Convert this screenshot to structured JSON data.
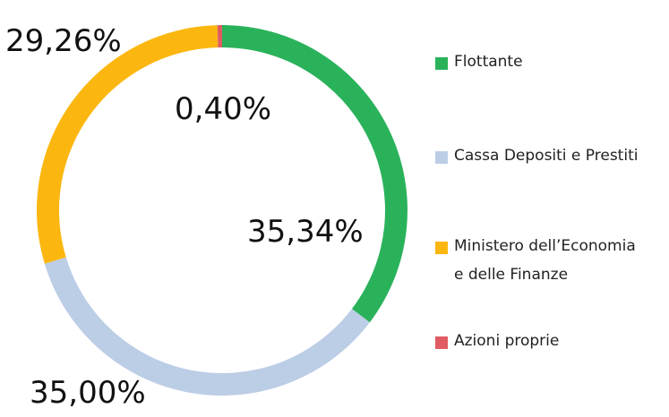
{
  "chart_data": {
    "type": "pie",
    "donut": true,
    "slices": [
      {
        "label": "Flottante",
        "value": 35.34,
        "value_label": "35,34%",
        "color": "#2ab25b"
      },
      {
        "label": "Cassa Depositi e Prestiti",
        "value": 35.0,
        "value_label": "35,00%",
        "color": "#bccde6"
      },
      {
        "label": "Ministero dell’Economia\ne delle Finanze",
        "value": 29.26,
        "value_label": "29,26%",
        "color": "#fbb710"
      },
      {
        "label": "Azioni proprie",
        "value": 0.4,
        "value_label": "0,40%",
        "color": "#e05c62"
      }
    ],
    "legend_position": "right"
  }
}
